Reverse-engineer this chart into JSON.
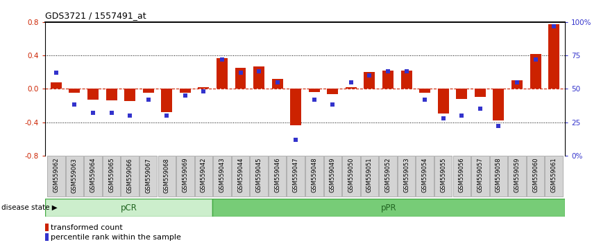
{
  "title": "GDS3721 / 1557491_at",
  "samples": [
    "GSM559062",
    "GSM559063",
    "GSM559064",
    "GSM559065",
    "GSM559066",
    "GSM559067",
    "GSM559068",
    "GSM559069",
    "GSM559042",
    "GSM559043",
    "GSM559044",
    "GSM559045",
    "GSM559046",
    "GSM559047",
    "GSM559048",
    "GSM559049",
    "GSM559050",
    "GSM559051",
    "GSM559052",
    "GSM559053",
    "GSM559054",
    "GSM559055",
    "GSM559056",
    "GSM559057",
    "GSM559058",
    "GSM559059",
    "GSM559060",
    "GSM559061"
  ],
  "bar_values": [
    0.08,
    -0.05,
    -0.13,
    -0.14,
    -0.15,
    -0.05,
    -0.28,
    -0.05,
    0.02,
    0.37,
    0.25,
    0.27,
    0.12,
    -0.44,
    -0.04,
    -0.06,
    0.02,
    0.2,
    0.22,
    0.22,
    -0.05,
    -0.3,
    -0.12,
    -0.1,
    -0.38,
    0.1,
    0.42,
    0.77
  ],
  "dot_values_pct": [
    62,
    38,
    32,
    32,
    30,
    42,
    30,
    45,
    48,
    72,
    62,
    63,
    55,
    12,
    42,
    38,
    55,
    60,
    63,
    63,
    42,
    28,
    30,
    35,
    22,
    55,
    72,
    97
  ],
  "pCR_count": 9,
  "pPR_count": 19,
  "ylim_left": [
    -0.8,
    0.8
  ],
  "ylim_right": [
    0,
    100
  ],
  "yticks_left": [
    -0.8,
    -0.4,
    0.0,
    0.4,
    0.8
  ],
  "yticks_right": [
    0,
    25,
    50,
    75,
    100
  ],
  "bar_color": "#cc2200",
  "dot_color": "#3333cc",
  "pcr_color": "#cceecc",
  "ppr_color": "#77cc77",
  "tick_label_bg": "#d4d4d4",
  "tick_label_edge": "#999999",
  "legend_bar_label": "transformed count",
  "legend_dot_label": "percentile rank within the sample",
  "disease_state_label": "disease state",
  "pcr_label": "pCR",
  "ppr_label": "pPR"
}
